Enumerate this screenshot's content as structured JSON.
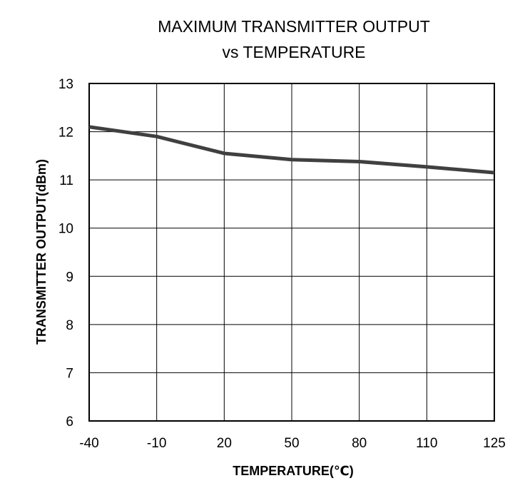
{
  "chart_data": {
    "type": "line",
    "title": "MAXIMUM TRANSMITTER OUTPUT",
    "subtitle": "vs TEMPERATURE",
    "xlabel": "TEMPERATURE(℃)",
    "ylabel": "TRANSMITTER OUTPUT(dBm)",
    "categories": [
      "-40",
      "-10",
      "20",
      "50",
      "80",
      "110",
      "125"
    ],
    "y_ticks": [
      "13",
      "12",
      "11",
      "10",
      "9",
      "8",
      "7",
      "6"
    ],
    "ylim": [
      6,
      13
    ],
    "grid": true,
    "legend": "none",
    "series": [
      {
        "values": [
          12.1,
          11.9,
          11.55,
          11.42,
          11.38,
          11.27,
          11.15
        ],
        "color": "#404040"
      }
    ]
  }
}
